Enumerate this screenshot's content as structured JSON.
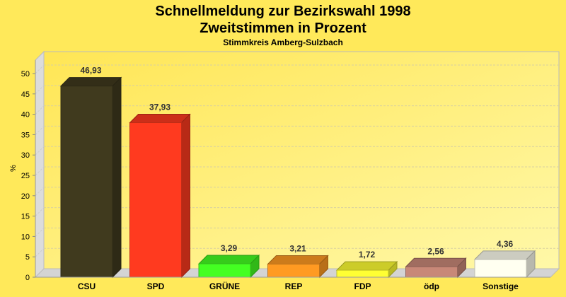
{
  "chart_data": {
    "type": "bar",
    "title": "Schnellmeldung zur Bezirkswahl 1998",
    "title2": "Zweitstimmen in Prozent",
    "subtitle": "Stimmkreis Amberg-Sulzbach",
    "xlabel": "",
    "ylabel": "%",
    "ylim": [
      0,
      50
    ],
    "yticks": [
      0,
      5,
      10,
      15,
      20,
      25,
      30,
      35,
      40,
      45,
      50
    ],
    "grid": true,
    "categories": [
      "CSU",
      "SPD",
      "GRÜNE",
      "REP",
      "FDP",
      "ödp",
      "Sonstige"
    ],
    "values": [
      46.93,
      37.93,
      3.29,
      3.21,
      1.72,
      2.56,
      4.36
    ],
    "labels": [
      "46,93",
      "37,93",
      "3,29",
      "3,21",
      "1,72",
      "2,56",
      "4,36"
    ],
    "colors": [
      "#403a1e",
      "#ff3a1f",
      "#44ff22",
      "#ff9a22",
      "#ffff33",
      "#c88878",
      "#fffff0"
    ]
  }
}
